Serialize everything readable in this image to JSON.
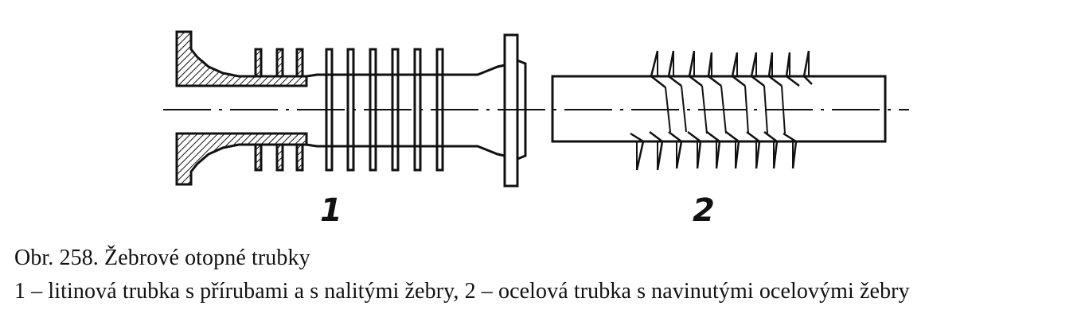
{
  "figure": {
    "part_labels": [
      "1",
      "2"
    ]
  },
  "caption": {
    "title": "Obr. 258. Žebrové otopné trubky",
    "description": "1 – litinová trubka s přírubami a s nalitými žebry, 2 – ocelová trubka s navinutými ocelovými žebry"
  }
}
